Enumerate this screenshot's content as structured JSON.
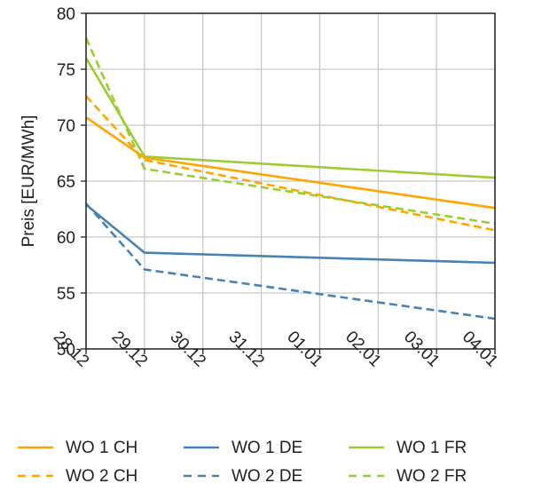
{
  "chart_data": {
    "type": "line",
    "ylabel": "Preis [EUR/MWh]",
    "xlabel": "",
    "categories": [
      "28.12",
      "29.12",
      "30.12",
      "31.12",
      "01.01",
      "02.01",
      "03.01",
      "04.01"
    ],
    "ylim": [
      50,
      80
    ],
    "yticks": [
      50,
      55,
      60,
      65,
      70,
      75,
      80
    ],
    "grid": true,
    "legend_position": "bottom",
    "colors": {
      "CH": "#ffa500",
      "DE": "#4682b4",
      "FR": "#9acd32"
    },
    "series": [
      {
        "name": "WO 1 CH",
        "color": "#ffa500",
        "dashed": false,
        "x": [
          0,
          1,
          7
        ],
        "values": [
          70.7,
          67.1,
          62.6
        ]
      },
      {
        "name": "WO 1 DE",
        "color": "#4682b4",
        "dashed": false,
        "x": [
          0,
          1,
          7
        ],
        "values": [
          62.9,
          58.6,
          57.7
        ]
      },
      {
        "name": "WO 1 FR",
        "color": "#9acd32",
        "dashed": false,
        "x": [
          0,
          1,
          7
        ],
        "values": [
          76.0,
          67.2,
          65.3
        ]
      },
      {
        "name": "WO 2 CH",
        "color": "#ffa500",
        "dashed": true,
        "x": [
          0,
          1,
          7
        ],
        "values": [
          72.6,
          66.9,
          60.6
        ]
      },
      {
        "name": "WO 2 DE",
        "color": "#4682b4",
        "dashed": true,
        "x": [
          0,
          1,
          7
        ],
        "values": [
          63.0,
          57.1,
          52.7
        ]
      },
      {
        "name": "WO 2 FR",
        "color": "#9acd32",
        "dashed": true,
        "x": [
          0,
          1,
          7
        ],
        "values": [
          77.8,
          66.1,
          61.2
        ]
      }
    ]
  }
}
